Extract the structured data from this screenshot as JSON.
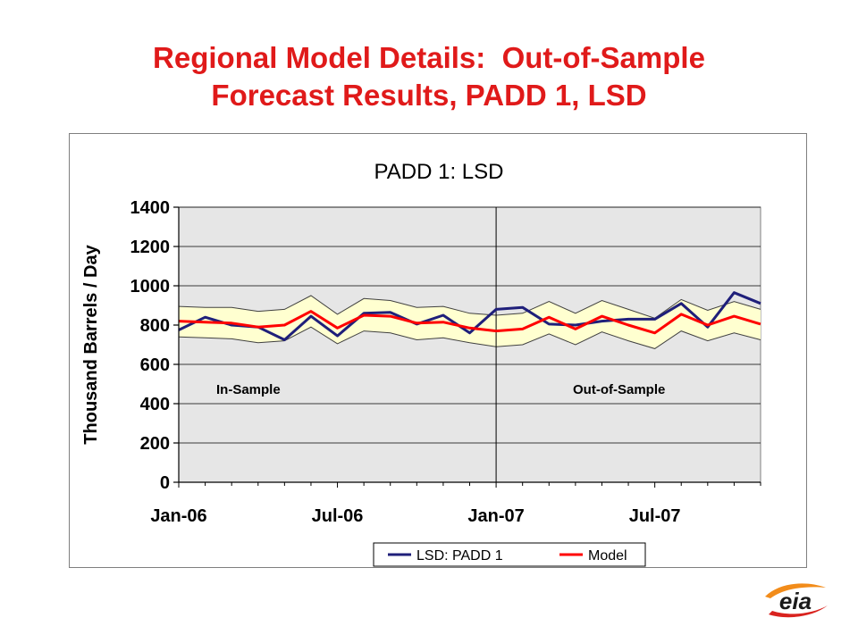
{
  "slide": {
    "title_line1": "Regional Model Details:  Out-of-Sample",
    "title_line2": "Forecast Results, PADD 1, LSD"
  },
  "logo": {
    "text": "eia",
    "colors": {
      "orange": "#f28c1a",
      "red": "#d9231f",
      "ink": "#1a1a1a"
    }
  },
  "chart_data": {
    "type": "line",
    "title": "PADD 1:  LSD",
    "ylabel": "Thousand Barrels / Day",
    "xlabel": "",
    "ylim": [
      0,
      1400
    ],
    "yticks": [
      0,
      200,
      400,
      600,
      800,
      1000,
      1200,
      1400
    ],
    "xtick_labels": [
      "Jan-06",
      "Jul-06",
      "Jan-07",
      "Jul-07"
    ],
    "xtick_index": [
      0,
      6,
      12,
      18
    ],
    "x": [
      "Jan-06",
      "Feb-06",
      "Mar-06",
      "Apr-06",
      "May-06",
      "Jun-06",
      "Jul-06",
      "Aug-06",
      "Sep-06",
      "Oct-06",
      "Nov-06",
      "Dec-06",
      "Jan-07",
      "Feb-07",
      "Mar-07",
      "Apr-07",
      "May-07",
      "Jun-07",
      "Jul-07",
      "Aug-07",
      "Sep-07",
      "Oct-07",
      "Nov-07"
    ],
    "grid": "horizontal",
    "plot_background": "#e6e6e6",
    "split_index": 12,
    "annotations": {
      "left": "In-Sample",
      "right": "Out-of-Sample"
    },
    "legend_position": "bottom",
    "series": [
      {
        "name": "LSD:  PADD 1",
        "color": "#1f1f7a",
        "values": [
          775,
          840,
          800,
          790,
          725,
          845,
          745,
          860,
          865,
          805,
          850,
          760,
          880,
          890,
          805,
          800,
          820,
          830,
          830,
          910,
          790,
          965,
          910
        ]
      },
      {
        "name": "Model",
        "color": "#ff0000",
        "values": [
          820,
          815,
          810,
          790,
          800,
          870,
          785,
          850,
          845,
          810,
          815,
          785,
          770,
          780,
          840,
          780,
          845,
          800,
          760,
          855,
          800,
          845,
          805
        ]
      }
    ],
    "band": {
      "color": "#ffffd0",
      "edge": "#404040",
      "upper": [
        895,
        890,
        890,
        870,
        880,
        950,
        855,
        935,
        925,
        890,
        895,
        860,
        850,
        860,
        920,
        860,
        925,
        880,
        835,
        930,
        875,
        920,
        880
      ],
      "lower": [
        740,
        735,
        730,
        710,
        720,
        790,
        705,
        770,
        760,
        725,
        735,
        710,
        690,
        700,
        755,
        700,
        765,
        720,
        680,
        770,
        720,
        760,
        725
      ]
    }
  }
}
